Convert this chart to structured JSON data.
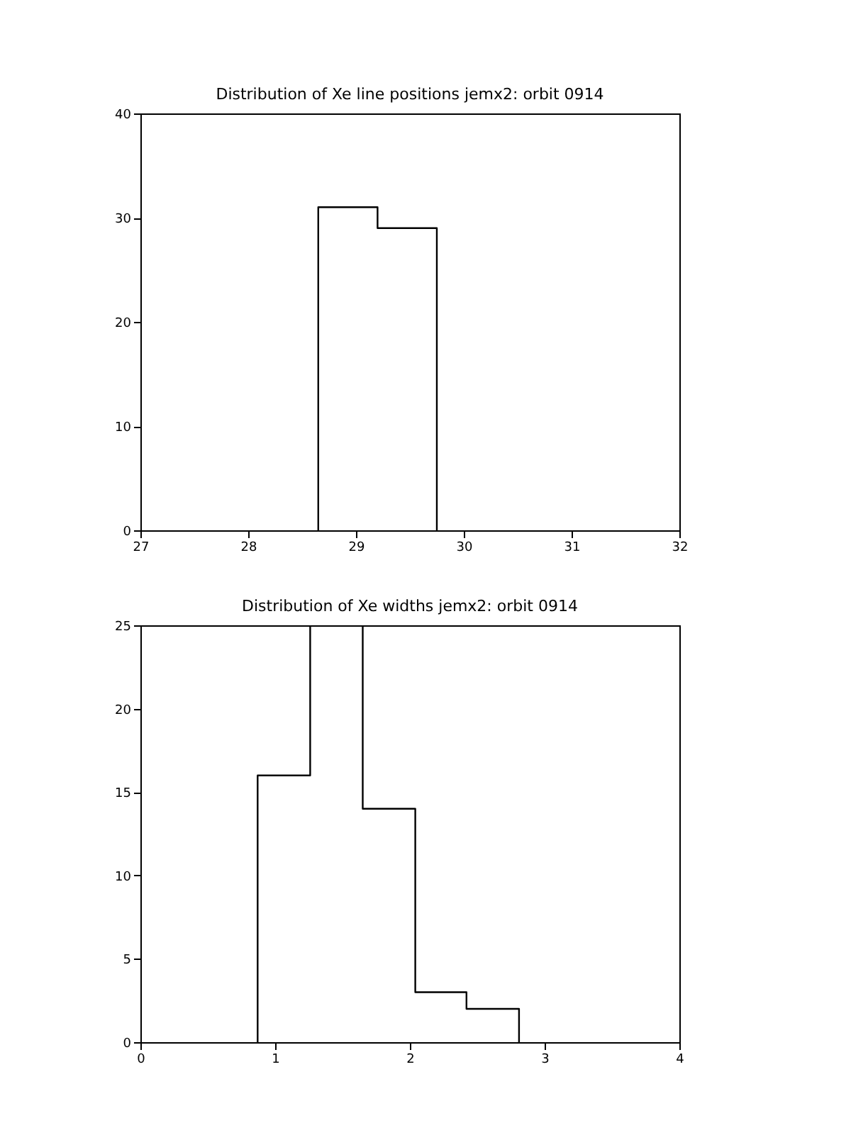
{
  "chart_data": [
    {
      "type": "histogram",
      "title": "Distribution of Xe line positions jemx2: orbit 0914",
      "bins": [
        28.65,
        29.2,
        29.75
      ],
      "values": [
        31,
        29
      ],
      "color": "#000000",
      "xlim": [
        27,
        32
      ],
      "xticks": [
        27,
        28,
        29,
        30,
        31,
        32
      ],
      "ylim": [
        0,
        40
      ],
      "yticks": [
        0,
        10,
        20,
        30,
        40
      ],
      "grid": false
    },
    {
      "type": "histogram",
      "title": "Distribution of Xe widths jemx2: orbit 0914",
      "bins": [
        0.87,
        1.26,
        1.65,
        2.04,
        2.42,
        2.81
      ],
      "values": [
        16,
        25,
        14,
        3,
        2
      ],
      "color": "#000000",
      "xlim": [
        0,
        4
      ],
      "xticks": [
        0,
        1,
        2,
        3,
        4
      ],
      "ylim": [
        0,
        25
      ],
      "yticks": [
        0,
        5,
        10,
        15,
        20,
        25
      ],
      "grid": false
    }
  ]
}
